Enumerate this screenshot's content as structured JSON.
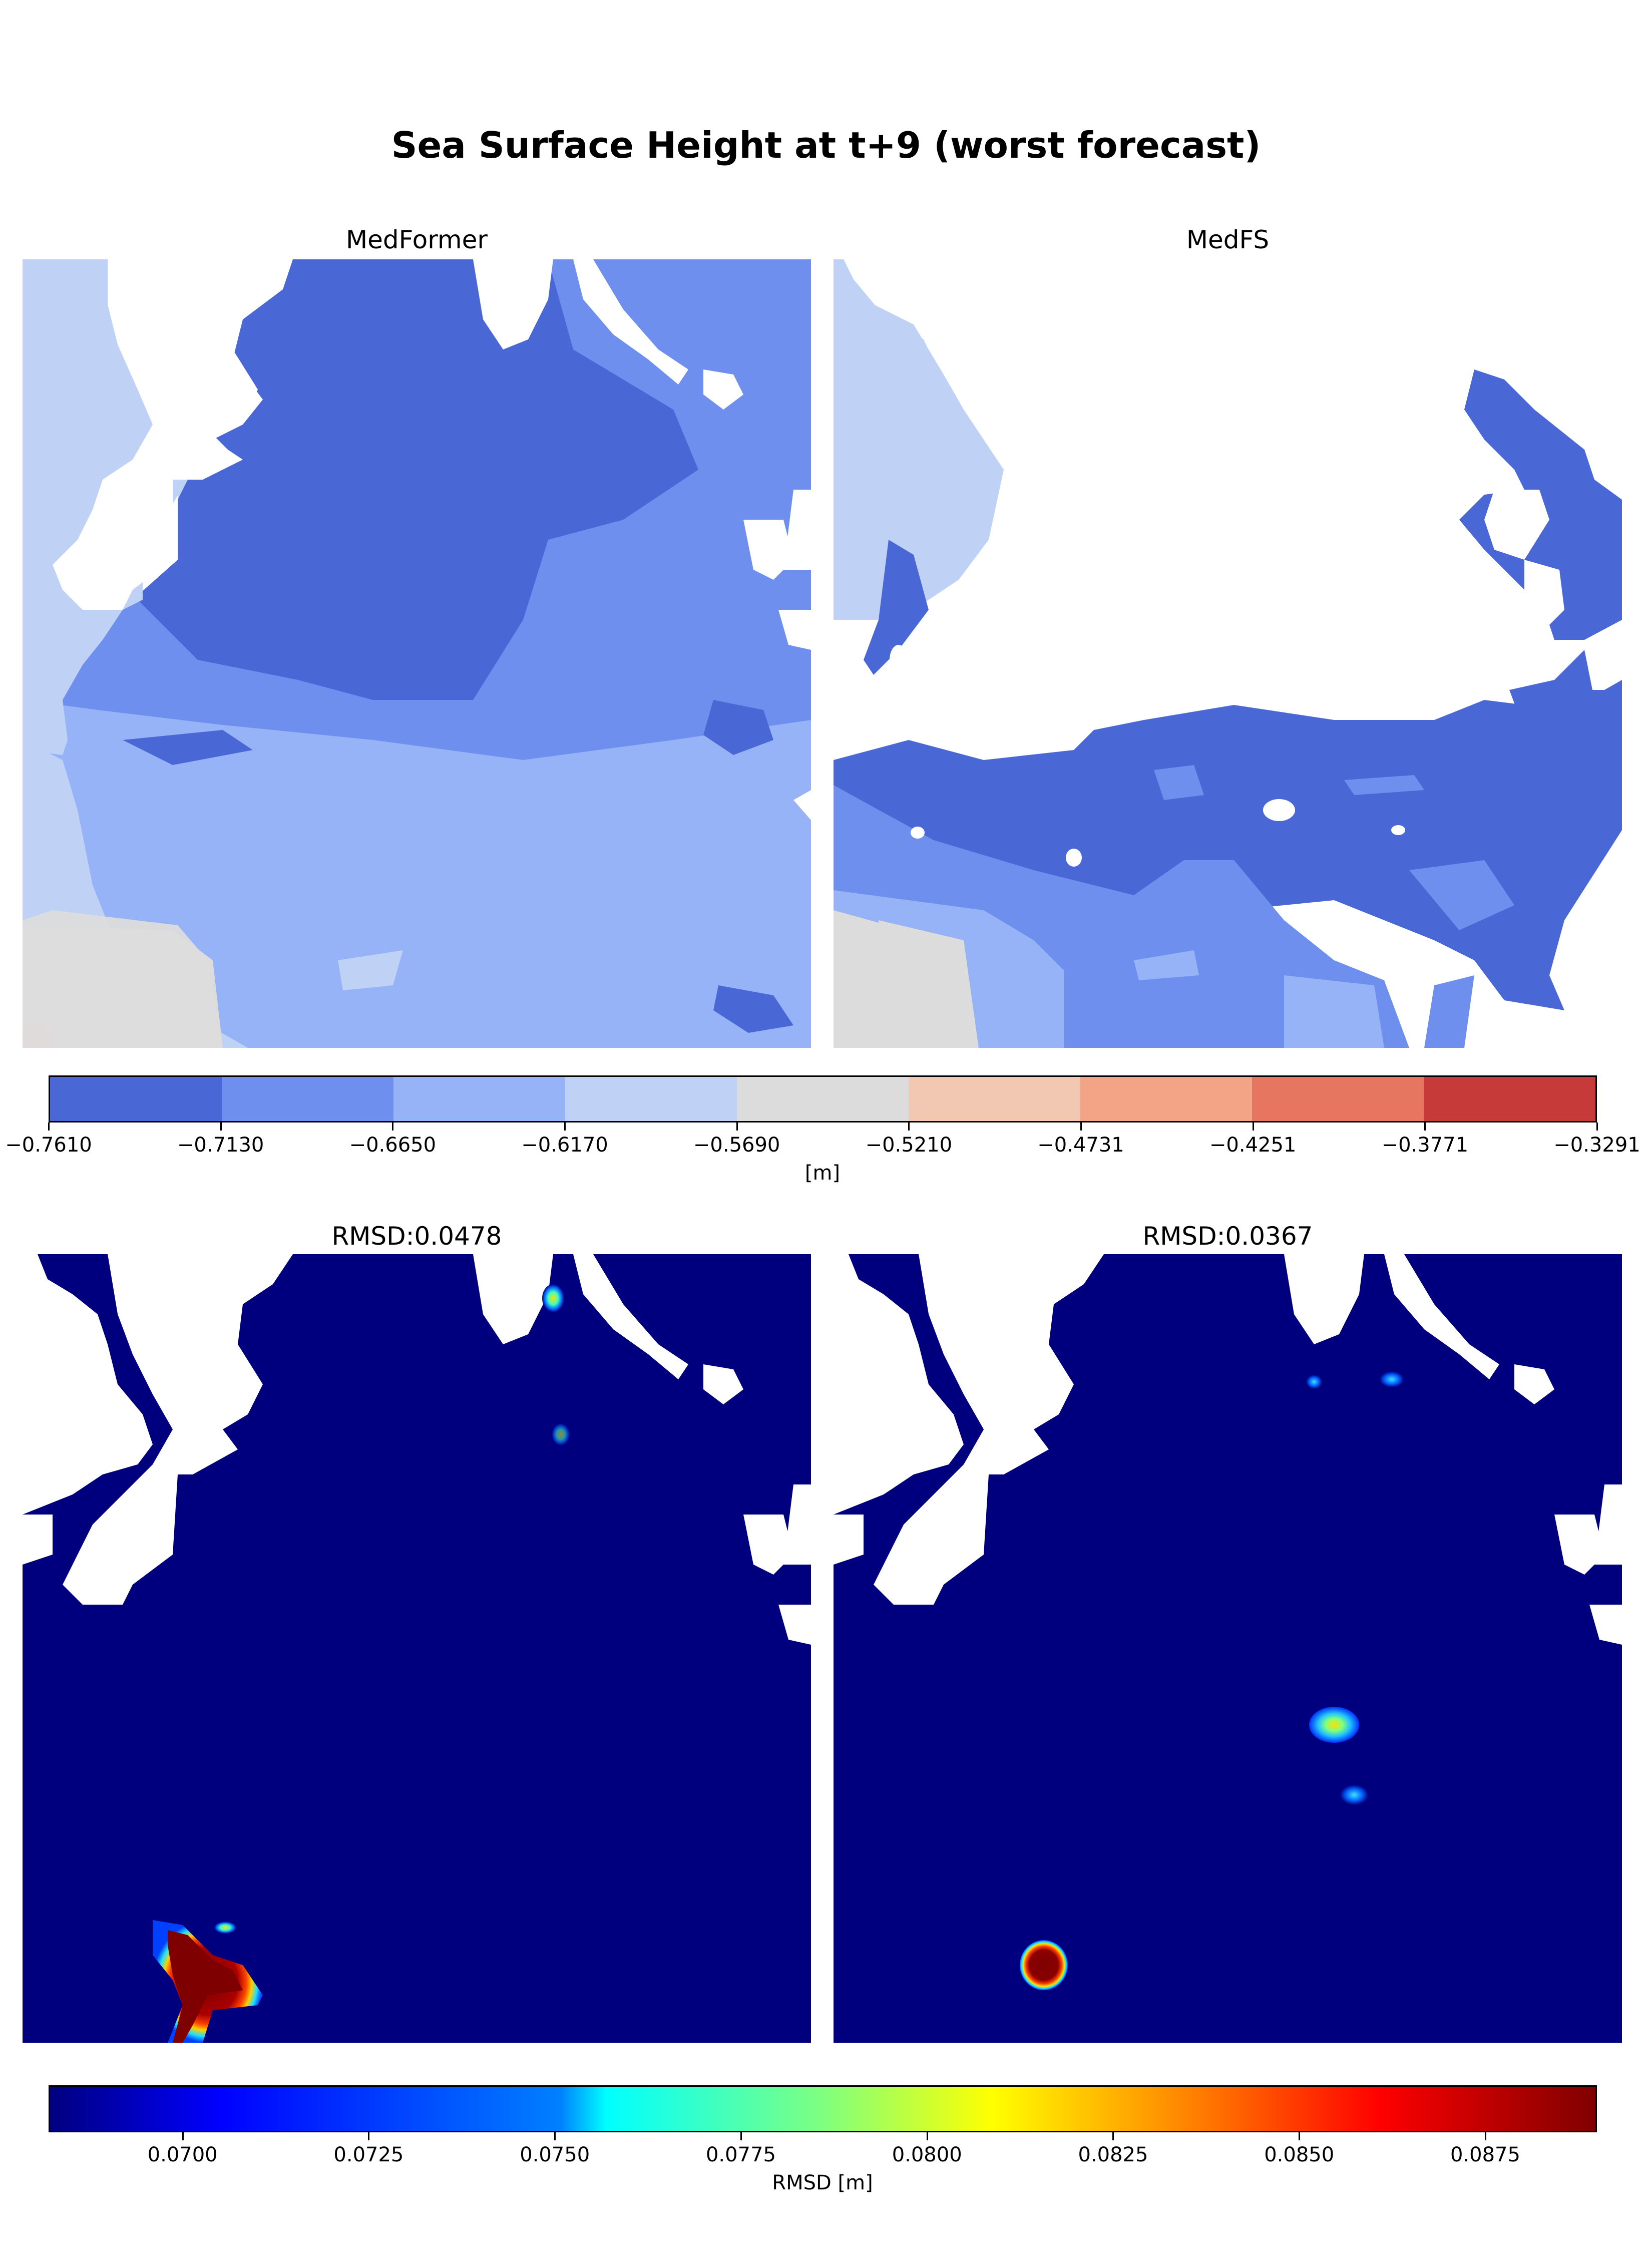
{
  "title": "Sea Surface Height at t+9 (worst forecast)",
  "panels": {
    "top_left": "MedFormer",
    "top_right": "MedFS",
    "bottom_left": "RMSD:0.0478",
    "bottom_right": "RMSD:0.0367"
  },
  "colors": {
    "land": "#ffffff",
    "ssh_levels": [
      "#4a67d6",
      "#6f8fef",
      "#97b3f8",
      "#bfd2f6",
      "#dcdcdc",
      "#f2c8b2",
      "#f4a486",
      "#e67660",
      "#c73a3a"
    ],
    "rmsd_background": "#00007f"
  },
  "chart_data": [
    {
      "type": "heatmap",
      "title": "Sea Surface Height at t+9 (worst forecast)",
      "panels": [
        "MedFormer",
        "MedFS"
      ],
      "colorbar": {
        "label": "[m]",
        "ticks": [
          "−0.7610",
          "−0.7130",
          "−0.6650",
          "−0.6170",
          "−0.5690",
          "−0.5210",
          "−0.4731",
          "−0.4251",
          "−0.3771",
          "−0.3291"
        ],
        "range": [
          -0.761,
          -0.3291
        ],
        "levels": 9
      }
    },
    {
      "type": "heatmap",
      "panels": [
        "RMSD:0.0478",
        "RMSD:0.0367"
      ],
      "rmsd_values": [
        0.0478,
        0.0367
      ],
      "colorbar": {
        "label": "RMSD [m]",
        "ticks": [
          "0.0700",
          "0.0725",
          "0.0750",
          "0.0775",
          "0.0800",
          "0.0825",
          "0.0850",
          "0.0875"
        ],
        "colormap": "jet",
        "range": [
          0.0682,
          0.089
        ]
      }
    }
  ]
}
